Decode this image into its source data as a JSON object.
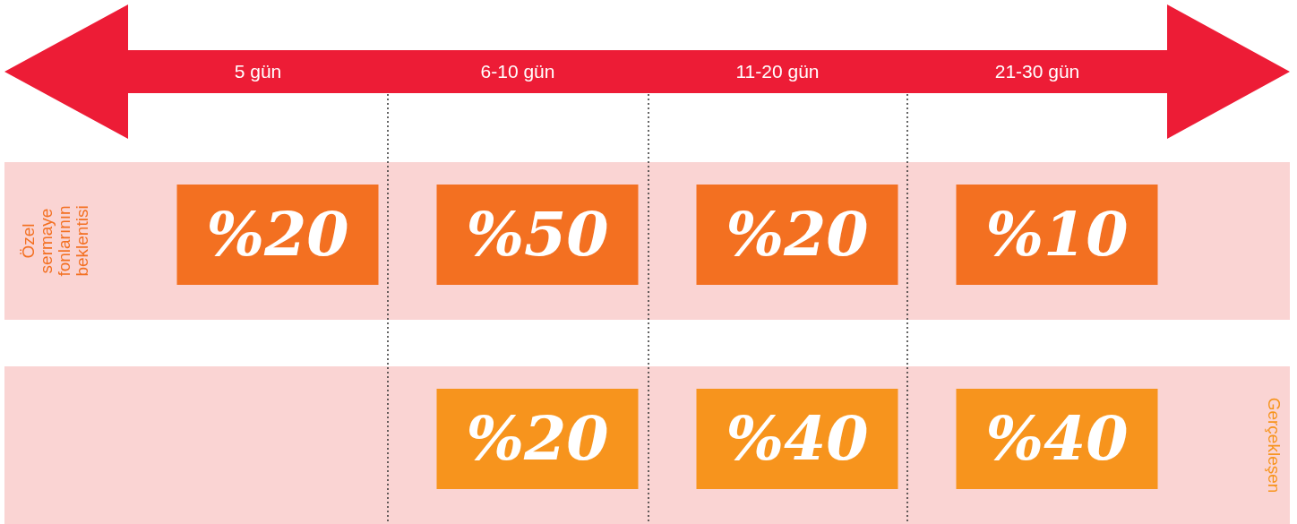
{
  "chart_data": {
    "type": "other",
    "categories": [
      "5 gün",
      "6-10  gün",
      "11-20 gün",
      "21-30 gün"
    ],
    "series": [
      {
        "name": "Özel sermaye fonlarının beklentisi",
        "color": "#f37021",
        "values": [
          20,
          50,
          20,
          10
        ],
        "value_labels": [
          "%20",
          "%50",
          "%20",
          "%10"
        ]
      },
      {
        "name": "Gerçekleşen",
        "color": "#f7941d",
        "values": [
          null,
          20,
          40,
          40
        ],
        "value_labels": [
          null,
          "%20",
          "%40",
          "%40"
        ]
      }
    ]
  }
}
